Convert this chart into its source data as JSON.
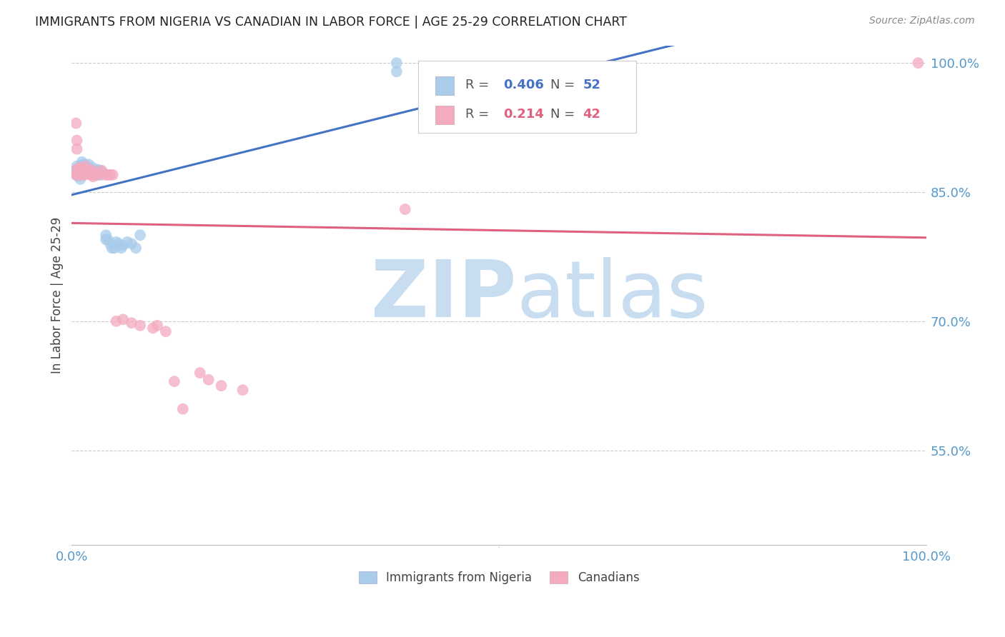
{
  "title": "IMMIGRANTS FROM NIGERIA VS CANADIAN IN LABOR FORCE | AGE 25-29 CORRELATION CHART",
  "source": "Source: ZipAtlas.com",
  "ylabel": "In Labor Force | Age 25-29",
  "legend_labels": [
    "Immigrants from Nigeria",
    "Canadians"
  ],
  "R_nigeria": 0.406,
  "N_nigeria": 52,
  "R_canada": 0.214,
  "N_canada": 42,
  "blue_color": "#A8CCEA",
  "pink_color": "#F4AABF",
  "blue_line_color": "#4472C4",
  "pink_line_color": "#E06080",
  "axis_label_color": "#5599CC",
  "title_color": "#222222",
  "source_color": "#888888",
  "watermark_zip_color": "#C8DEF0",
  "watermark_atlas_color": "#C8DEF0",
  "background_color": "#FFFFFF",
  "grid_color": "#CCCCCC",
  "xlim": [
    0.0,
    1.0
  ],
  "ylim": [
    0.44,
    1.02
  ],
  "ytick_positions": [
    0.55,
    0.7,
    0.85,
    1.0
  ],
  "ytick_labels": [
    "55.0%",
    "70.0%",
    "85.0%",
    "100.0%"
  ],
  "nigeria_x": [
    0.005,
    0.005,
    0.005,
    0.006,
    0.007,
    0.008,
    0.008,
    0.009,
    0.01,
    0.01,
    0.01,
    0.01,
    0.011,
    0.012,
    0.012,
    0.013,
    0.013,
    0.014,
    0.015,
    0.016,
    0.017,
    0.018,
    0.018,
    0.019,
    0.02,
    0.022,
    0.023,
    0.025,
    0.025,
    0.027,
    0.028,
    0.03,
    0.031,
    0.033,
    0.035,
    0.037,
    0.04,
    0.04,
    0.042,
    0.045,
    0.047,
    0.05,
    0.052,
    0.055,
    0.058,
    0.06,
    0.065,
    0.07,
    0.075,
    0.08,
    0.38,
    0.38
  ],
  "nigeria_y": [
    0.875,
    0.875,
    0.87,
    0.88,
    0.875,
    0.87,
    0.868,
    0.875,
    0.88,
    0.875,
    0.87,
    0.865,
    0.878,
    0.875,
    0.885,
    0.882,
    0.875,
    0.878,
    0.882,
    0.878,
    0.872,
    0.876,
    0.88,
    0.875,
    0.882,
    0.872,
    0.875,
    0.878,
    0.87,
    0.875,
    0.872,
    0.87,
    0.876,
    0.875,
    0.87,
    0.872,
    0.795,
    0.8,
    0.795,
    0.79,
    0.785,
    0.785,
    0.792,
    0.79,
    0.785,
    0.788,
    0.792,
    0.79,
    0.785,
    0.8,
    0.99,
    1.0
  ],
  "canada_x": [
    0.004,
    0.005,
    0.005,
    0.006,
    0.006,
    0.007,
    0.008,
    0.009,
    0.01,
    0.011,
    0.012,
    0.013,
    0.015,
    0.016,
    0.018,
    0.02,
    0.022,
    0.024,
    0.025,
    0.027,
    0.03,
    0.032,
    0.035,
    0.04,
    0.042,
    0.045,
    0.048,
    0.052,
    0.06,
    0.07,
    0.08,
    0.095,
    0.1,
    0.11,
    0.12,
    0.13,
    0.15,
    0.16,
    0.175,
    0.2,
    0.39,
    0.99
  ],
  "canada_y": [
    0.875,
    0.93,
    0.87,
    0.91,
    0.9,
    0.872,
    0.878,
    0.87,
    0.878,
    0.876,
    0.87,
    0.875,
    0.87,
    0.88,
    0.875,
    0.875,
    0.87,
    0.875,
    0.868,
    0.87,
    0.872,
    0.87,
    0.875,
    0.87,
    0.87,
    0.87,
    0.87,
    0.7,
    0.702,
    0.698,
    0.695,
    0.692,
    0.695,
    0.688,
    0.63,
    0.598,
    0.64,
    0.632,
    0.625,
    0.62,
    0.83,
    1.0
  ]
}
